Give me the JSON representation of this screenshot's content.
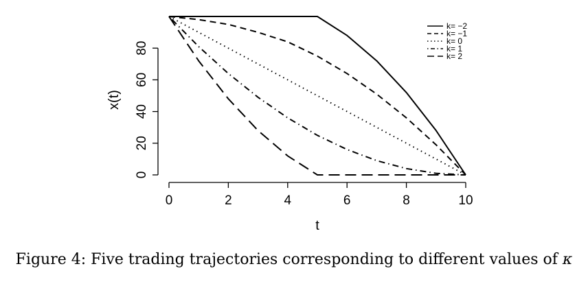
{
  "caption": {
    "prefix": "Figure 4: Five trading trajectories corresponding to different values of ",
    "symbol": "κ"
  },
  "chart_data": {
    "type": "line",
    "xlabel": "t",
    "ylabel": "x(t)",
    "xlim": [
      0,
      10
    ],
    "ylim": [
      0,
      100
    ],
    "x_ticks": [
      "0",
      "2",
      "4",
      "6",
      "8",
      "10"
    ],
    "y_ticks": [
      "0",
      "20",
      "40",
      "60",
      "80"
    ],
    "grid": false,
    "legend_position": "top-right",
    "series": [
      {
        "name": "k= −2",
        "dash": "solid",
        "x": [
          0,
          1,
          2,
          3,
          4,
          5,
          6,
          7,
          8,
          9,
          10
        ],
        "y": [
          100,
          100,
          100,
          100,
          100,
          100,
          88,
          72,
          52,
          28,
          0
        ]
      },
      {
        "name": "k= −1",
        "dash": "dashed",
        "x": [
          0,
          1,
          2,
          3,
          4,
          5,
          6,
          7,
          8,
          9,
          10
        ],
        "y": [
          100,
          98,
          95,
          90,
          84,
          75,
          64,
          51,
          36,
          19,
          0
        ]
      },
      {
        "name": "k= 0",
        "dash": "dotted",
        "x": [
          0,
          1,
          2,
          3,
          4,
          5,
          6,
          7,
          8,
          9,
          10
        ],
        "y": [
          100,
          90,
          80,
          70,
          60,
          50,
          40,
          30,
          20,
          10,
          0
        ]
      },
      {
        "name": "k= 1",
        "dash": "dotdash",
        "x": [
          0,
          1,
          2,
          3,
          4,
          5,
          6,
          7,
          8,
          9,
          10
        ],
        "y": [
          100,
          81,
          64,
          49,
          36,
          25,
          16,
          9,
          4,
          1,
          0
        ]
      },
      {
        "name": "k= 2",
        "dash": "longdash",
        "x": [
          0,
          1,
          2,
          3,
          4,
          5,
          6,
          7,
          8,
          9,
          10
        ],
        "y": [
          100,
          72,
          48,
          28,
          12,
          0,
          0,
          0,
          0,
          0,
          0
        ]
      }
    ]
  }
}
